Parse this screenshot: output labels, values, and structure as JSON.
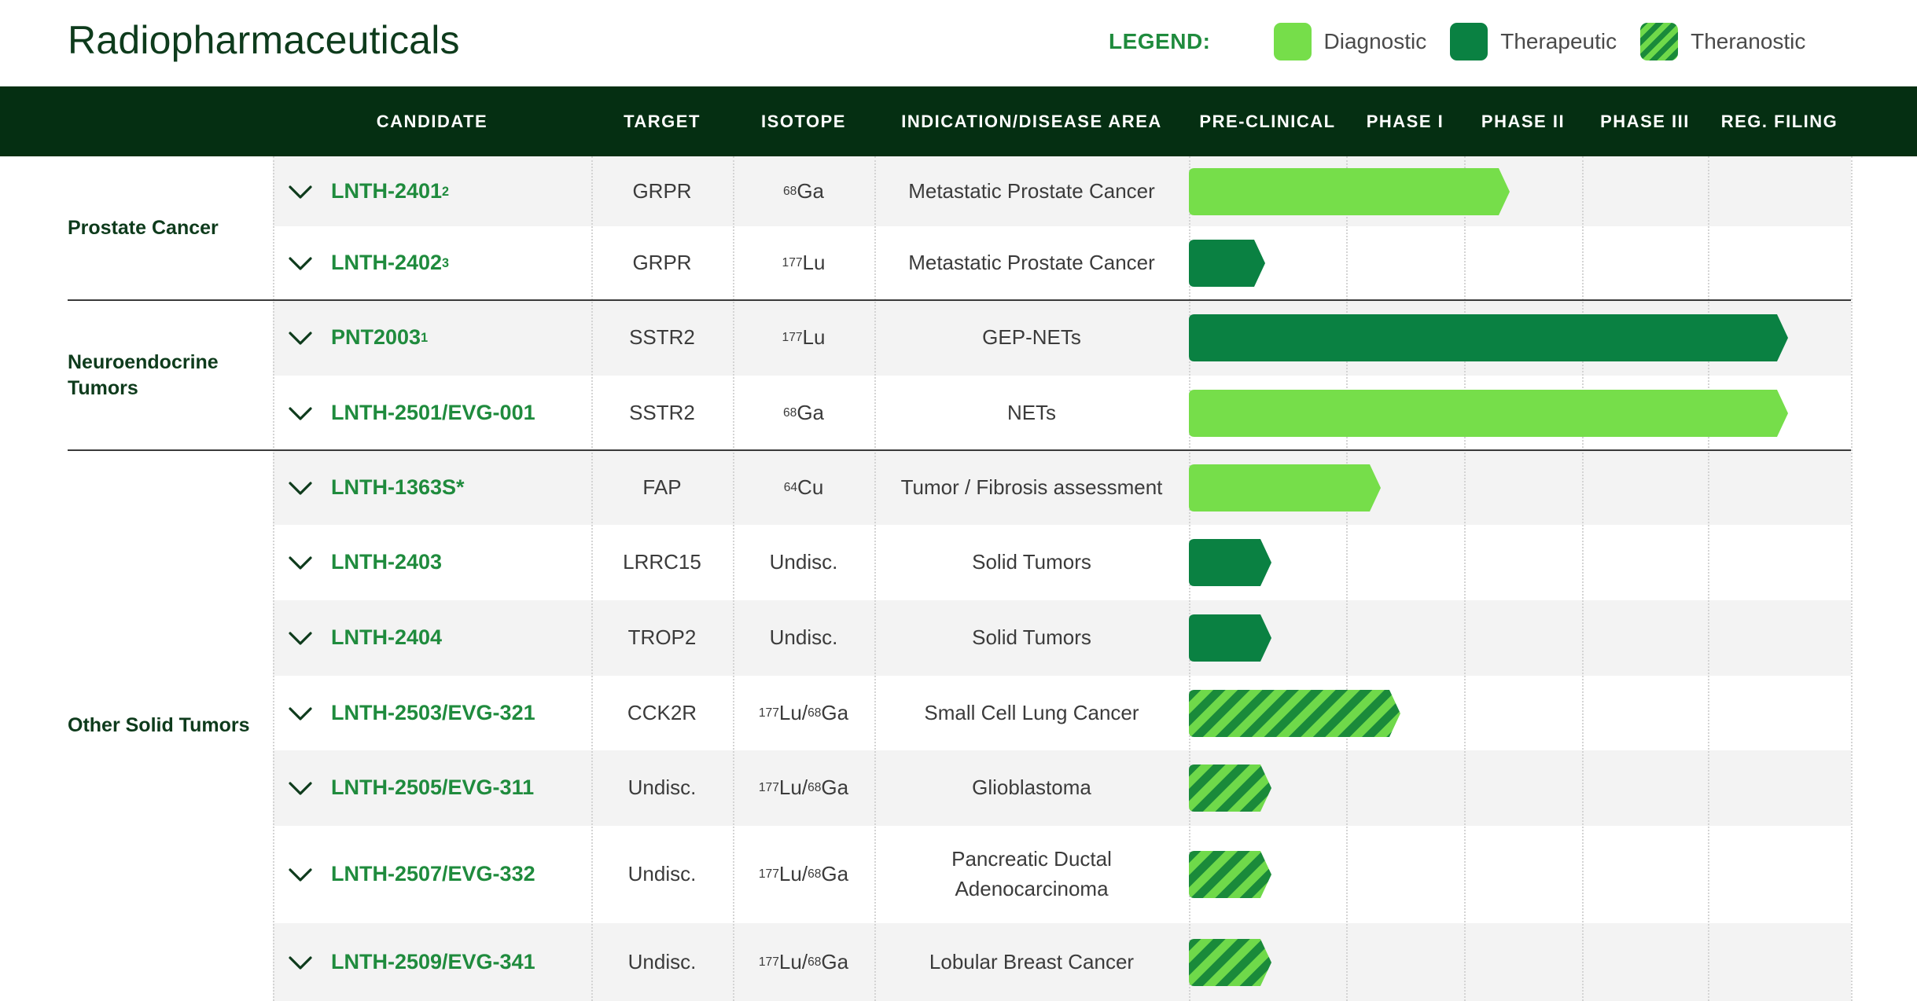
{
  "page": {
    "title": "Radiopharmaceuticals"
  },
  "legend": {
    "label": "LEGEND:",
    "items": [
      {
        "label": "Diagnostic",
        "type": "diagnostic"
      },
      {
        "label": "Therapeutic",
        "type": "therapeutic"
      },
      {
        "label": "Theranostic",
        "type": "theranostic"
      }
    ]
  },
  "colors": {
    "header_bg": "#052f12",
    "diagnostic": "#76de4a",
    "therapeutic": "#0a8142",
    "theranostic_a": "#1a8a3a",
    "theranostic_b": "#6fd94a",
    "candidate_text": "#1f8b3d"
  },
  "columns": {
    "candidate": "CANDIDATE",
    "target": "TARGET",
    "isotope": "ISOTOPE",
    "indication": "INDICATION/DISEASE AREA",
    "preclinical": "PRE-CLINICAL",
    "phase1": "PHASE I",
    "phase2": "PHASE II",
    "phase3": "PHASE III",
    "regfiling": "REG. FILING"
  },
  "groups": [
    {
      "label": "Prostate Cancer",
      "rows": [
        0,
        1
      ]
    },
    {
      "label": "Neuroendocrine Tumors",
      "rows": [
        2,
        3
      ]
    },
    {
      "label": "Other Solid Tumors",
      "rows": [
        4,
        5,
        6,
        7,
        8,
        9,
        10
      ]
    }
  ],
  "rows": [
    {
      "candidate": "LNTH-2401",
      "sup": "2",
      "target": "GRPR",
      "iso": [
        {
          "m": "68",
          "el": "Ga"
        }
      ],
      "indication": "Metastatic Prostate Cancer",
      "type": "diagnostic",
      "progress": 0.485
    },
    {
      "candidate": "LNTH-2402",
      "sup": "3",
      "target": "GRPR",
      "iso": [
        {
          "m": "177",
          "el": "Lu"
        }
      ],
      "indication": "Metastatic Prostate Cancer",
      "type": "therapeutic",
      "progress": 0.115
    },
    {
      "candidate": "PNT2003",
      "sup": "1",
      "target": "SSTR2",
      "iso": [
        {
          "m": "177",
          "el": "Lu"
        }
      ],
      "indication": "GEP-NETs",
      "type": "therapeutic",
      "progress": 0.905
    },
    {
      "candidate": "LNTH-2501/EVG-001",
      "sup": "",
      "target": "SSTR2",
      "iso": [
        {
          "m": "68",
          "el": "Ga"
        }
      ],
      "indication": "NETs",
      "type": "diagnostic",
      "progress": 0.905
    },
    {
      "candidate": "LNTH-1363S*",
      "sup": "",
      "target": "FAP",
      "iso": [
        {
          "m": "64",
          "el": "Cu"
        }
      ],
      "indication": "Tumor / Fibrosis assessment",
      "type": "diagnostic",
      "progress": 0.29
    },
    {
      "candidate": "LNTH-2403",
      "sup": "",
      "target": "LRRC15",
      "iso_text": "Undisc.",
      "indication": "Solid Tumors",
      "type": "therapeutic",
      "progress": 0.125
    },
    {
      "candidate": "LNTH-2404",
      "sup": "",
      "target": "TROP2",
      "iso_text": "Undisc.",
      "indication": "Solid Tumors",
      "type": "therapeutic",
      "progress": 0.125
    },
    {
      "candidate": "LNTH-2503/EVG-321",
      "sup": "",
      "target": "CCK2R",
      "iso": [
        {
          "m": "177",
          "el": "Lu"
        },
        {
          "m": "68",
          "el": "Ga"
        }
      ],
      "indication": "Small Cell Lung Cancer",
      "type": "theranostic",
      "progress": 0.32
    },
    {
      "candidate": "LNTH-2505/EVG-311",
      "sup": "",
      "target": "Undisc.",
      "iso": [
        {
          "m": "177",
          "el": "Lu"
        },
        {
          "m": "68",
          "el": "Ga"
        }
      ],
      "indication": "Glioblastoma",
      "type": "theranostic",
      "progress": 0.125
    },
    {
      "candidate": "LNTH-2507/EVG-332",
      "sup": "",
      "target": "Undisc.",
      "iso": [
        {
          "m": "177",
          "el": "Lu"
        },
        {
          "m": "68",
          "el": "Ga"
        }
      ],
      "indication": "Pancreatic Ductal Adenocarcinoma",
      "indication_lines": [
        "Pancreatic Ductal",
        "Adenocarcinoma"
      ],
      "type": "theranostic",
      "progress": 0.125
    },
    {
      "candidate": "LNTH-2509/EVG-341",
      "sup": "",
      "target": "Undisc.",
      "iso": [
        {
          "m": "177",
          "el": "Lu"
        },
        {
          "m": "68",
          "el": "Ga"
        }
      ],
      "indication": "Lobular Breast Cancer",
      "type": "theranostic",
      "progress": 0.125
    }
  ]
}
